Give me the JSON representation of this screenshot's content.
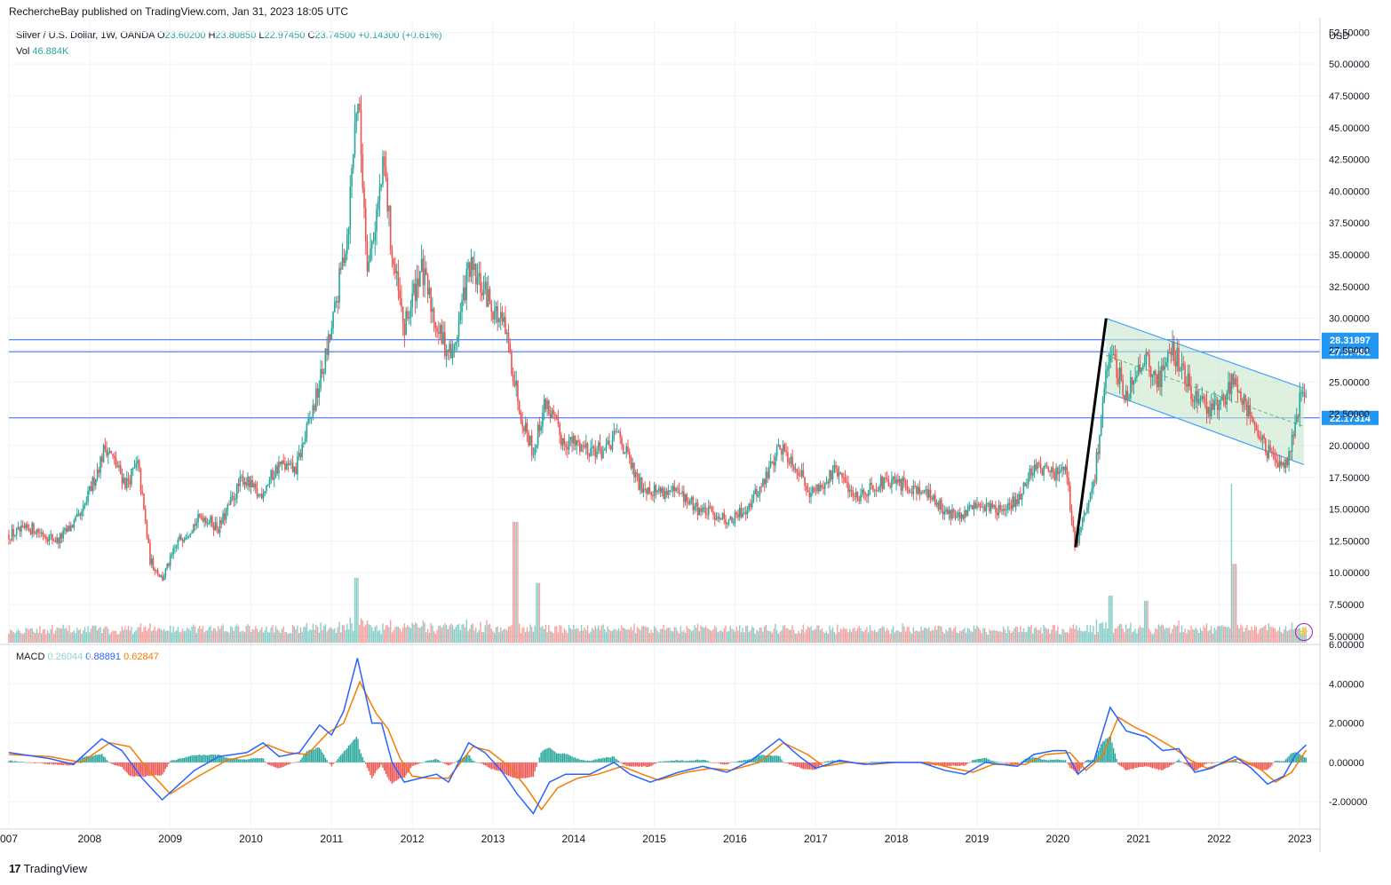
{
  "header": {
    "publisher": "RechercheBay published on TradingView.com, Jan 31, 2023 18:05 UTC"
  },
  "legend": {
    "symbol": "Silver / U.S. Dollar, 1W, OANDA",
    "o_label": "O",
    "o": "23.60200",
    "h_label": "H",
    "h": "23.80850",
    "l_label": "L",
    "l": "22.97450",
    "c_label": "C",
    "c": "23.74500",
    "chg": "+0.14300 (+0.61%)",
    "vol_label": "Vol",
    "vol": "46.884K",
    "macd_label": "MACD",
    "macd_hist": "0.26044",
    "macd": "0.88891",
    "macd_signal": "0.62847"
  },
  "footer": {
    "brand": "TradingView"
  },
  "colors": {
    "up": "#26a69a",
    "down": "#ef5350",
    "macd": "#2962ff",
    "signal": "#f57c00",
    "hline": "#2962ff",
    "channel_fill": "#c8e6c9",
    "channel_line": "#42a5f5",
    "grid": "#f0f3fa"
  },
  "icons": {
    "flash": "lightning-icon",
    "logo": "tradingview-logo-icon"
  },
  "chart_data": [
    {
      "type": "candlestick",
      "title": "Silver / U.S. Dollar, 1W, OANDA",
      "currency": "USD",
      "ylim": [
        4.5,
        53.5
      ],
      "yticks": [
        5,
        7.5,
        10,
        12.5,
        15,
        17.5,
        20,
        22.5,
        25,
        27.5,
        30,
        32.5,
        35,
        37.5,
        40,
        42.5,
        45,
        47.5,
        50,
        52.5
      ],
      "ytick_labels": [
        "5.00000",
        "7.50000",
        "10.00000",
        "12.50000",
        "15.00000",
        "17.50000",
        "20.00000",
        "22.50000",
        "25.00000",
        "27.50000",
        "30.00000",
        "32.50000",
        "35.00000",
        "37.50000",
        "40.00000",
        "42.50000",
        "45.00000",
        "47.50000",
        "50.00000",
        "52.50000"
      ],
      "x_range": [
        2007.0,
        2023.25
      ],
      "xticks": [
        "007",
        "2008",
        "2009",
        "2010",
        "2011",
        "2012",
        "2013",
        "2014",
        "2015",
        "2016",
        "2017",
        "2018",
        "2019",
        "2020",
        "2021",
        "2022",
        "2023"
      ],
      "price_path": [
        [
          2007.0,
          13.0
        ],
        [
          2007.3,
          13.5
        ],
        [
          2007.6,
          12.5
        ],
        [
          2007.9,
          14.5
        ],
        [
          2008.2,
          20.0
        ],
        [
          2008.45,
          17.0
        ],
        [
          2008.6,
          18.5
        ],
        [
          2008.75,
          11.0
        ],
        [
          2008.9,
          9.5
        ],
        [
          2009.1,
          12.5
        ],
        [
          2009.4,
          14.5
        ],
        [
          2009.6,
          13.5
        ],
        [
          2009.9,
          17.5
        ],
        [
          2010.1,
          16.0
        ],
        [
          2010.35,
          18.5
        ],
        [
          2010.55,
          18.0
        ],
        [
          2010.8,
          23.5
        ],
        [
          2011.0,
          29.0
        ],
        [
          2011.2,
          37.0
        ],
        [
          2011.32,
          48.0
        ],
        [
          2011.45,
          34.0
        ],
        [
          2011.65,
          42.0
        ],
        [
          2011.75,
          35.0
        ],
        [
          2011.9,
          29.0
        ],
        [
          2012.1,
          34.0
        ],
        [
          2012.35,
          28.5
        ],
        [
          2012.5,
          27.0
        ],
        [
          2012.7,
          34.0
        ],
        [
          2012.95,
          31.5
        ],
        [
          2013.15,
          29.0
        ],
        [
          2013.35,
          22.5
        ],
        [
          2013.5,
          19.5
        ],
        [
          2013.65,
          23.5
        ],
        [
          2013.85,
          20.5
        ],
        [
          2014.1,
          20.0
        ],
        [
          2014.4,
          19.5
        ],
        [
          2014.55,
          21.0
        ],
        [
          2014.8,
          17.0
        ],
        [
          2015.0,
          16.5
        ],
        [
          2015.3,
          16.2
        ],
        [
          2015.55,
          15.0
        ],
        [
          2015.8,
          14.5
        ],
        [
          2015.95,
          14.0
        ],
        [
          2016.15,
          15.2
        ],
        [
          2016.35,
          17.0
        ],
        [
          2016.55,
          20.0
        ],
        [
          2016.75,
          18.5
        ],
        [
          2016.95,
          16.2
        ],
        [
          2017.25,
          18.0
        ],
        [
          2017.5,
          16.0
        ],
        [
          2017.75,
          17.0
        ],
        [
          2018.0,
          17.0
        ],
        [
          2018.3,
          16.6
        ],
        [
          2018.6,
          15.0
        ],
        [
          2018.8,
          14.2
        ],
        [
          2019.0,
          15.5
        ],
        [
          2019.35,
          14.8
        ],
        [
          2019.55,
          16.2
        ],
        [
          2019.7,
          18.5
        ],
        [
          2019.95,
          17.8
        ],
        [
          2020.1,
          18.0
        ],
        [
          2020.22,
          12.0
        ],
        [
          2020.45,
          17.0
        ],
        [
          2020.6,
          26.0
        ],
        [
          2020.7,
          26.5
        ],
        [
          2020.85,
          24.0
        ],
        [
          2021.05,
          27.0
        ],
        [
          2021.25,
          25.0
        ],
        [
          2021.4,
          28.0
        ],
        [
          2021.6,
          25.0
        ],
        [
          2021.8,
          23.0
        ],
        [
          2022.0,
          23.0
        ],
        [
          2022.2,
          25.5
        ],
        [
          2022.35,
          23.0
        ],
        [
          2022.55,
          20.0
        ],
        [
          2022.7,
          18.5
        ],
        [
          2022.85,
          19.0
        ],
        [
          2023.0,
          23.5
        ],
        [
          2023.08,
          23.75
        ]
      ],
      "volume_spikes": [
        [
          2011.3,
          9.6
        ],
        [
          2013.28,
          14.0
        ],
        [
          2013.55,
          9.2
        ],
        [
          2020.65,
          8.2
        ],
        [
          2021.1,
          7.8
        ],
        [
          2022.17,
          17.0
        ],
        [
          2022.2,
          10.7
        ]
      ],
      "horizontal_lines": [
        {
          "value": 28.31897,
          "label": "28.31897"
        },
        {
          "value": 27.37481,
          "label": "27.37481"
        },
        {
          "value": 22.17314,
          "label": "22.17314"
        }
      ],
      "trend_line": {
        "from": [
          2020.22,
          12.0
        ],
        "to": [
          2020.6,
          30.0
        ]
      },
      "channel": {
        "upper": [
          [
            2020.6,
            30.0
          ],
          [
            2023.05,
            24.5
          ]
        ],
        "lower": [
          [
            2020.6,
            24.2
          ],
          [
            2023.05,
            18.5
          ]
        ]
      }
    },
    {
      "type": "line",
      "title": "MACD",
      "ylim": [
        -3.3,
        6.0
      ],
      "yticks": [
        -2,
        0,
        2,
        4,
        6
      ],
      "ytick_labels": [
        "-2.00000",
        "0.00000",
        "2.00000",
        "4.00000",
        "6.00000"
      ],
      "series": [
        {
          "name": "MACD",
          "values": [
            [
              2007.0,
              0.5
            ],
            [
              2007.5,
              0.2
            ],
            [
              2007.8,
              -0.1
            ],
            [
              2008.15,
              1.2
            ],
            [
              2008.4,
              0.6
            ],
            [
              2008.65,
              -0.8
            ],
            [
              2008.9,
              -1.9
            ],
            [
              2009.3,
              -0.4
            ],
            [
              2009.6,
              0.3
            ],
            [
              2009.95,
              0.5
            ],
            [
              2010.15,
              1.0
            ],
            [
              2010.35,
              0.3
            ],
            [
              2010.6,
              0.5
            ],
            [
              2010.85,
              1.9
            ],
            [
              2011.0,
              1.4
            ],
            [
              2011.15,
              2.6
            ],
            [
              2011.32,
              5.3
            ],
            [
              2011.5,
              2.0
            ],
            [
              2011.62,
              2.0
            ],
            [
              2011.75,
              0.0
            ],
            [
              2011.9,
              -1.0
            ],
            [
              2012.1,
              -0.8
            ],
            [
              2012.3,
              -0.6
            ],
            [
              2012.45,
              -1.0
            ],
            [
              2012.7,
              1.0
            ],
            [
              2012.9,
              0.5
            ],
            [
              2013.1,
              -0.4
            ],
            [
              2013.3,
              -1.6
            ],
            [
              2013.5,
              -2.6
            ],
            [
              2013.7,
              -1.0
            ],
            [
              2013.9,
              -0.6
            ],
            [
              2014.2,
              -0.6
            ],
            [
              2014.5,
              0.0
            ],
            [
              2014.7,
              -0.6
            ],
            [
              2014.95,
              -1.0
            ],
            [
              2015.3,
              -0.5
            ],
            [
              2015.6,
              -0.2
            ],
            [
              2015.9,
              -0.5
            ],
            [
              2016.2,
              0.1
            ],
            [
              2016.55,
              1.2
            ],
            [
              2016.8,
              0.3
            ],
            [
              2017.0,
              -0.3
            ],
            [
              2017.3,
              0.1
            ],
            [
              2017.6,
              -0.1
            ],
            [
              2017.9,
              0.0
            ],
            [
              2018.3,
              0.0
            ],
            [
              2018.6,
              -0.4
            ],
            [
              2018.85,
              -0.6
            ],
            [
              2019.1,
              0.0
            ],
            [
              2019.5,
              -0.2
            ],
            [
              2019.7,
              0.4
            ],
            [
              2019.95,
              0.6
            ],
            [
              2020.1,
              0.6
            ],
            [
              2020.25,
              -0.6
            ],
            [
              2020.45,
              0.1
            ],
            [
              2020.65,
              2.8
            ],
            [
              2020.85,
              1.6
            ],
            [
              2021.1,
              1.3
            ],
            [
              2021.3,
              0.6
            ],
            [
              2021.5,
              0.7
            ],
            [
              2021.7,
              -0.5
            ],
            [
              2021.9,
              -0.3
            ],
            [
              2022.2,
              0.3
            ],
            [
              2022.4,
              -0.3
            ],
            [
              2022.6,
              -1.1
            ],
            [
              2022.8,
              -0.7
            ],
            [
              2022.95,
              0.4
            ],
            [
              2023.08,
              0.89
            ]
          ]
        },
        {
          "name": "Signal",
          "values": [
            [
              2007.0,
              0.4
            ],
            [
              2007.5,
              0.3
            ],
            [
              2007.9,
              0.0
            ],
            [
              2008.25,
              1.0
            ],
            [
              2008.5,
              0.8
            ],
            [
              2008.75,
              -0.5
            ],
            [
              2009.0,
              -1.6
            ],
            [
              2009.35,
              -0.7
            ],
            [
              2009.7,
              0.1
            ],
            [
              2010.0,
              0.4
            ],
            [
              2010.2,
              0.9
            ],
            [
              2010.45,
              0.5
            ],
            [
              2010.7,
              0.4
            ],
            [
              2010.95,
              1.5
            ],
            [
              2011.15,
              2.0
            ],
            [
              2011.35,
              4.1
            ],
            [
              2011.55,
              2.5
            ],
            [
              2011.7,
              1.7
            ],
            [
              2011.85,
              0.2
            ],
            [
              2012.0,
              -0.7
            ],
            [
              2012.2,
              -0.8
            ],
            [
              2012.45,
              -0.8
            ],
            [
              2012.75,
              0.8
            ],
            [
              2012.95,
              0.6
            ],
            [
              2013.2,
              -0.2
            ],
            [
              2013.4,
              -1.2
            ],
            [
              2013.6,
              -2.4
            ],
            [
              2013.8,
              -1.3
            ],
            [
              2014.05,
              -0.8
            ],
            [
              2014.3,
              -0.6
            ],
            [
              2014.6,
              -0.2
            ],
            [
              2014.85,
              -0.6
            ],
            [
              2015.05,
              -0.9
            ],
            [
              2015.4,
              -0.5
            ],
            [
              2015.7,
              -0.3
            ],
            [
              2015.95,
              -0.4
            ],
            [
              2016.3,
              0.0
            ],
            [
              2016.6,
              1.0
            ],
            [
              2016.9,
              0.4
            ],
            [
              2017.1,
              -0.2
            ],
            [
              2017.4,
              0.0
            ],
            [
              2017.7,
              -0.1
            ],
            [
              2018.0,
              0.0
            ],
            [
              2018.4,
              0.0
            ],
            [
              2018.7,
              -0.3
            ],
            [
              2018.95,
              -0.5
            ],
            [
              2019.2,
              -0.1
            ],
            [
              2019.6,
              -0.1
            ],
            [
              2019.85,
              0.4
            ],
            [
              2020.15,
              0.5
            ],
            [
              2020.35,
              -0.4
            ],
            [
              2020.55,
              0.3
            ],
            [
              2020.75,
              2.3
            ],
            [
              2020.95,
              1.8
            ],
            [
              2021.2,
              1.3
            ],
            [
              2021.45,
              0.7
            ],
            [
              2021.65,
              0.1
            ],
            [
              2021.85,
              -0.3
            ],
            [
              2022.25,
              0.2
            ],
            [
              2022.5,
              -0.3
            ],
            [
              2022.7,
              -1.0
            ],
            [
              2022.9,
              -0.5
            ],
            [
              2023.08,
              0.63
            ]
          ]
        }
      ]
    }
  ]
}
